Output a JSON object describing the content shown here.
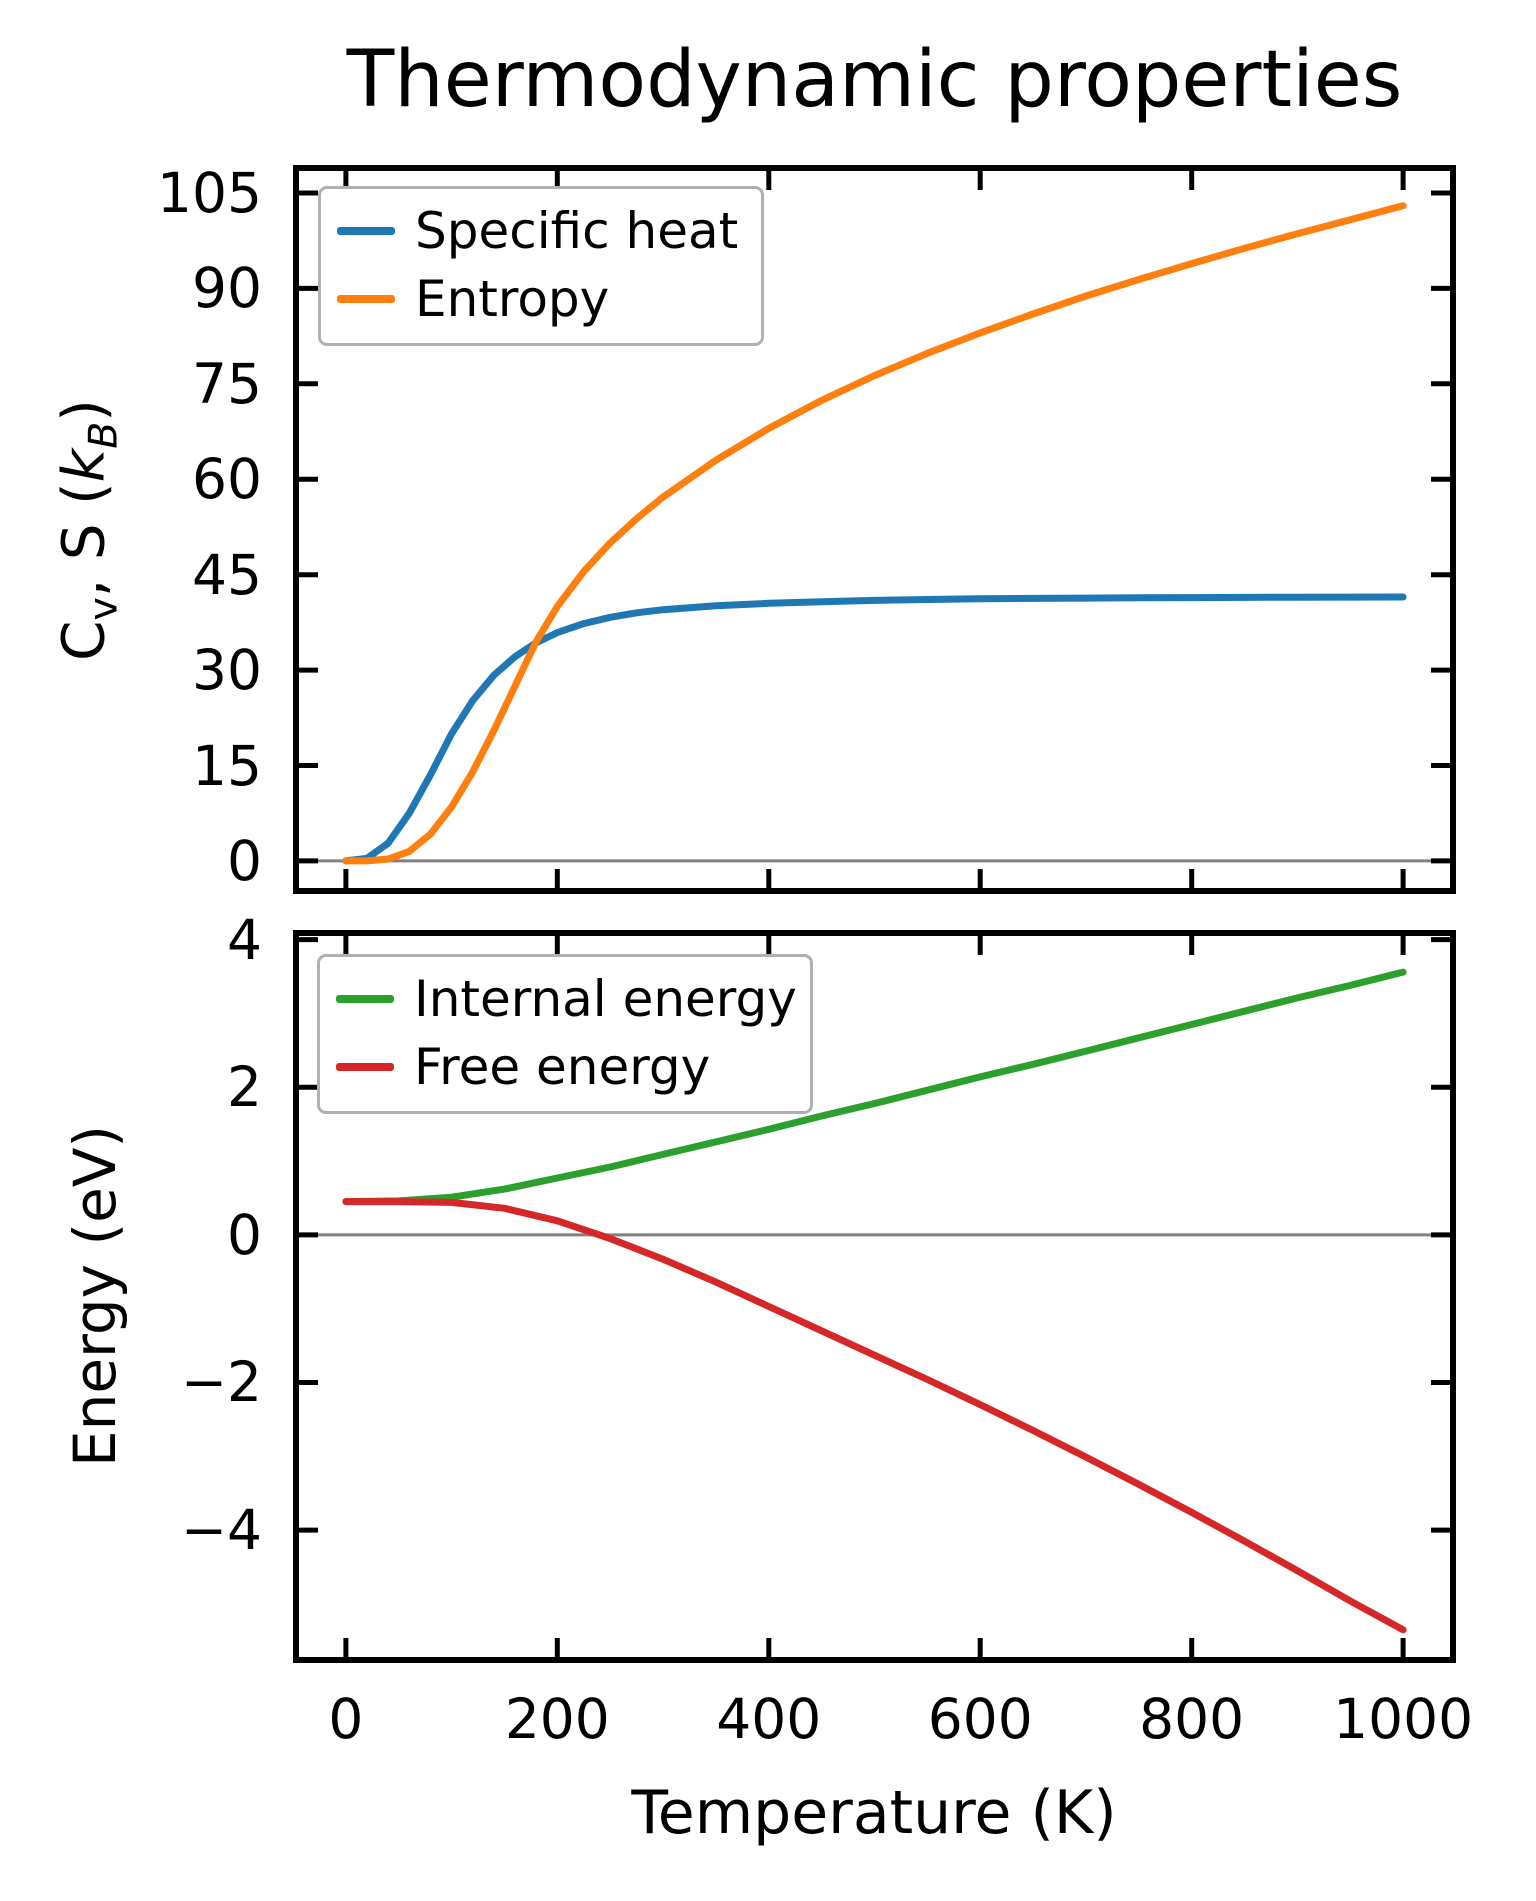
{
  "figure": {
    "background": "#ffffff",
    "axis_color": "#000000",
    "zero_line_color": "#808080",
    "legend_border_color": "#b0b0b0"
  },
  "chart_data": {
    "type": "line",
    "title": "Thermodynamic properties",
    "xlabel": "Temperature (K)",
    "xlim": [
      -50,
      1050
    ],
    "grid": false,
    "plots": [
      {
        "name": "specific-heat-entropy",
        "ylabel_parts": [
          {
            "t": "C"
          },
          {
            "t": "v",
            "sub": true
          },
          {
            "t": ", S ("
          },
          {
            "t": "k",
            "italic": true
          },
          {
            "t": "B",
            "sub": true,
            "italic": true
          },
          {
            "t": ")"
          }
        ],
        "ylim": [
          -5.2,
          109.4
        ],
        "yticks": {
          "values": [
            0,
            15,
            30,
            45,
            60,
            75,
            90,
            105
          ],
          "labels": [
            "0",
            "15",
            "30",
            "45",
            "60",
            "75",
            "90",
            "105"
          ]
        },
        "xticks": {
          "values": [
            0,
            200,
            400,
            600,
            800,
            1000
          ],
          "labels": [
            "0",
            "200",
            "400",
            "600",
            "800",
            "1000"
          ],
          "labels_visible": false
        },
        "zero_line": true,
        "legend_position": "upper-left",
        "series": [
          {
            "name": "Specific heat",
            "color": "#1f77b4",
            "x": [
              0,
              20,
              40,
              60,
              80,
              100,
              120,
              140,
              160,
              180,
              200,
              225,
              250,
              275,
              300,
              350,
              400,
              450,
              500,
              550,
              600,
              650,
              700,
              750,
              800,
              850,
              900,
              950,
              1000
            ],
            "y": [
              0,
              0.4,
              2.8,
              7.5,
              13.5,
              20,
              25.2,
              29.2,
              32.1,
              34.3,
              35.9,
              37.3,
              38.3,
              39,
              39.5,
              40.1,
              40.5,
              40.75,
              40.95,
              41.1,
              41.2,
              41.27,
              41.32,
              41.36,
              41.4,
              41.43,
              41.45,
              41.47,
              41.49
            ]
          },
          {
            "name": "Entropy",
            "color": "#ff7f0e",
            "x": [
              0,
              20,
              40,
              60,
              80,
              100,
              120,
              140,
              160,
              180,
              200,
              225,
              250,
              275,
              300,
              350,
              400,
              450,
              500,
              550,
              600,
              650,
              700,
              750,
              800,
              850,
              900,
              950,
              1000
            ],
            "y": [
              0,
              0,
              0.3,
              1.5,
              4.2,
              8.5,
              14,
              20.5,
              27.5,
              34.5,
              40,
              45.5,
              50,
              53.8,
              57.2,
              63,
              68,
              72.4,
              76.3,
              79.8,
              83,
              86,
              88.8,
              91.4,
              93.9,
              96.3,
              98.6,
              100.8,
              103
            ]
          }
        ]
      },
      {
        "name": "energy",
        "ylabel": "Energy (eV)",
        "ylim": [
          -5.8,
          4.13
        ],
        "yticks": {
          "values": [
            4,
            2,
            0,
            -2,
            -4
          ],
          "labels": [
            "4",
            "2",
            "0",
            "−2",
            "−4"
          ]
        },
        "xticks": {
          "values": [
            0,
            200,
            400,
            600,
            800,
            1000
          ],
          "labels": [
            "0",
            "200",
            "400",
            "600",
            "800",
            "1000"
          ],
          "labels_visible": true
        },
        "zero_line": true,
        "legend_position": "upper-left",
        "series": [
          {
            "name": "Internal energy",
            "color": "#2ca02c",
            "x": [
              0,
              50,
              100,
              150,
              200,
              250,
              300,
              350,
              400,
              450,
              500,
              550,
              600,
              650,
              700,
              750,
              800,
              850,
              900,
              950,
              1000
            ],
            "y": [
              0.45,
              0.46,
              0.51,
              0.62,
              0.77,
              0.92,
              1.09,
              1.26,
              1.43,
              1.61,
              1.78,
              1.96,
              2.14,
              2.31,
              2.49,
              2.67,
              2.85,
              3.03,
              3.21,
              3.38,
              3.56
            ]
          },
          {
            "name": "Free energy",
            "color": "#d62728",
            "x": [
              0,
              50,
              100,
              150,
              200,
              250,
              300,
              350,
              400,
              450,
              500,
              550,
              600,
              650,
              700,
              750,
              800,
              850,
              900,
              950,
              1000
            ],
            "y": [
              0.45,
              0.45,
              0.44,
              0.36,
              0.19,
              -0.05,
              -0.33,
              -0.64,
              -0.97,
              -1.3,
              -1.63,
              -1.96,
              -2.3,
              -2.65,
              -3.01,
              -3.38,
              -3.76,
              -4.15,
              -4.55,
              -4.96,
              -5.35
            ]
          }
        ]
      }
    ]
  }
}
